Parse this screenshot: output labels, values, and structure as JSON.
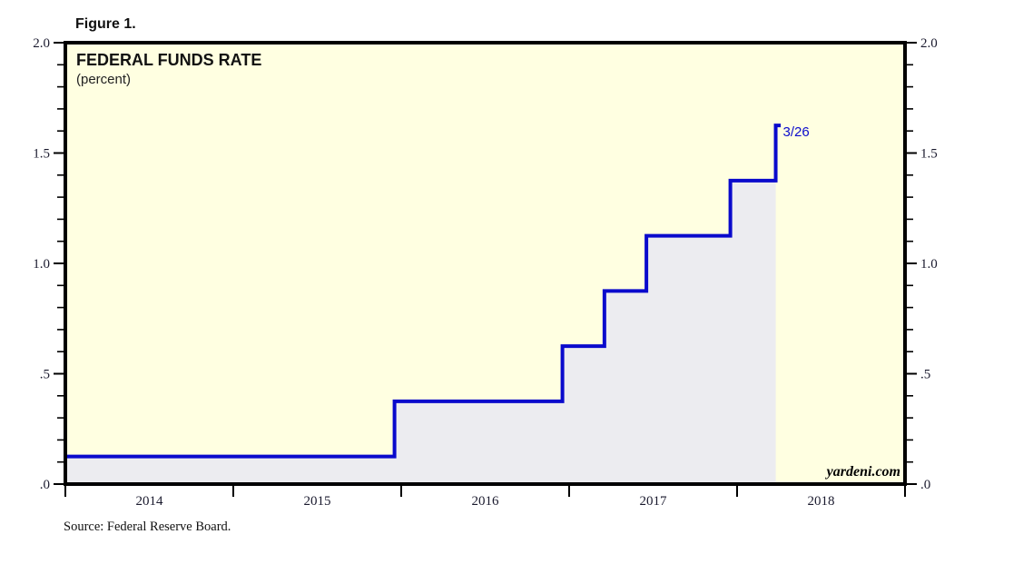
{
  "figure_label": "Figure 1.",
  "header": {
    "title": "FEDERAL FUNDS RATE",
    "subtitle": "(percent)"
  },
  "watermark": "yardeni.com",
  "source_note": "Source: Federal Reserve Board.",
  "colors": {
    "plot_background": "#FFFFE1",
    "outside_background": "#FFFFFF",
    "area_fill": "#ECECF0",
    "line": "#0A0ACC",
    "annotation": "#0A0ACC",
    "axis": "#000000",
    "tick_text": "#1a1a2e"
  },
  "chart_data": {
    "type": "line",
    "step_mode": "after",
    "title": "FEDERAL FUNDS RATE",
    "ylabel": "percent",
    "xlabel": "",
    "grid": false,
    "legend": false,
    "xlim": [
      2014,
      2019
    ],
    "ylim": [
      0,
      2
    ],
    "x_tick_years": [
      2014,
      2015,
      2016,
      2017,
      2018,
      2019
    ],
    "x_tick_labels": [
      {
        "year": 2014,
        "label": "2014"
      },
      {
        "year": 2015,
        "label": "2015"
      },
      {
        "year": 2016,
        "label": "2016"
      },
      {
        "year": 2017,
        "label": "2017"
      },
      {
        "year": 2018,
        "label": "2018"
      }
    ],
    "y_major_ticks": [
      {
        "value": 0.0,
        "label": ".0"
      },
      {
        "value": 0.5,
        "label": ".5"
      },
      {
        "value": 1.0,
        "label": "1.0"
      },
      {
        "value": 1.5,
        "label": "1.5"
      },
      {
        "value": 2.0,
        "label": "2.0"
      }
    ],
    "y_minor_step": 0.1,
    "y_axis_sides": [
      "left",
      "right"
    ],
    "series": [
      {
        "name": "Federal funds rate",
        "step_points": [
          {
            "x": 2014.0,
            "y": 0.125
          },
          {
            "x": 2015.96,
            "y": 0.375
          },
          {
            "x": 2016.96,
            "y": 0.625
          },
          {
            "x": 2017.21,
            "y": 0.875
          },
          {
            "x": 2017.46,
            "y": 1.125
          },
          {
            "x": 2017.96,
            "y": 1.375
          },
          {
            "x": 2018.23,
            "y": 1.625
          }
        ],
        "end_x": 2018.26,
        "fill_to_zero": true,
        "fill_top_value": 1.375
      }
    ],
    "annotation": {
      "text": "3/26",
      "x": 2018.23,
      "y": 1.625
    }
  }
}
